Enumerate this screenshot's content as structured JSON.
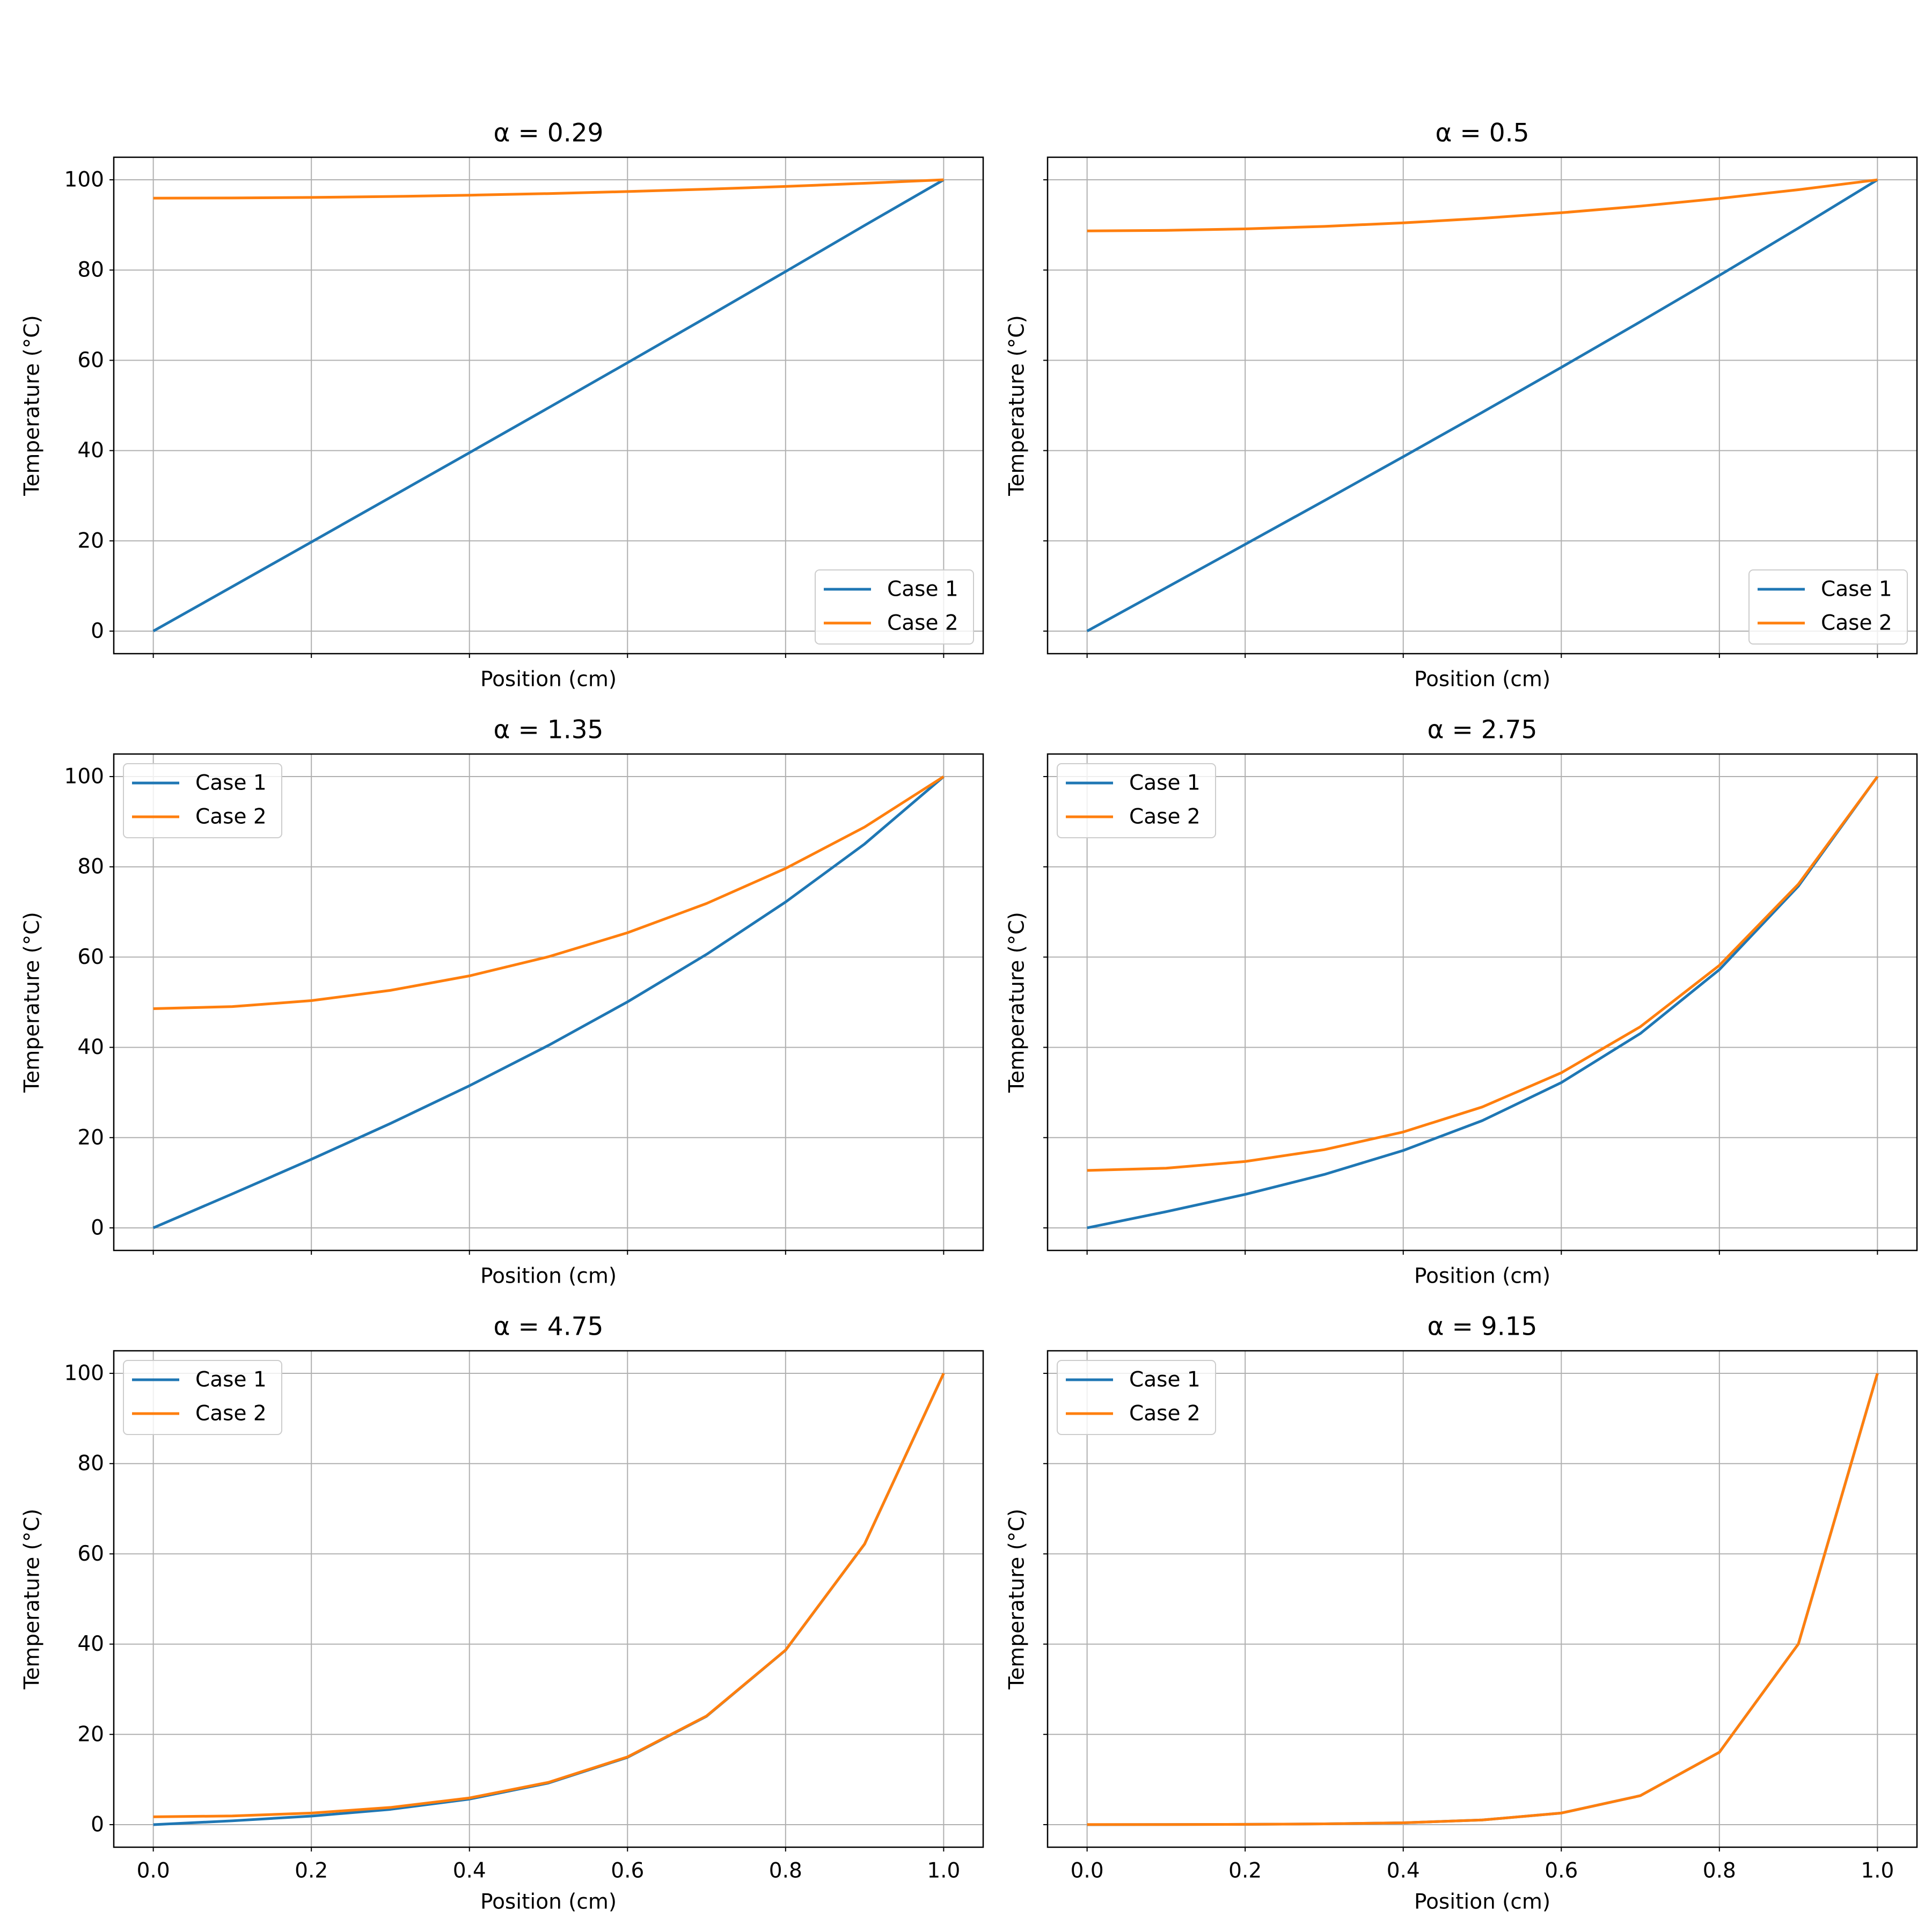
{
  "chart_data": [
    {
      "type": "line",
      "title": "α = 0.29",
      "xlabel": "Position (cm)",
      "ylabel": "Temperature (°C)",
      "x": [
        0,
        0.1,
        0.2,
        0.3,
        0.4,
        0.5,
        0.6,
        0.7,
        0.8,
        0.9,
        1.0
      ],
      "series": [
        {
          "name": "Case 1",
          "color": "#1f77b4",
          "values": [
            0,
            9.86,
            19.73,
            29.63,
            39.53,
            49.48,
            59.47,
            69.53,
            79.67,
            89.9,
            100
          ]
        },
        {
          "name": "Case 2",
          "color": "#ff7f0e",
          "values": [
            95.94,
            95.98,
            96.1,
            96.3,
            96.59,
            96.95,
            97.4,
            97.92,
            98.53,
            99.23,
            100
          ]
        }
      ],
      "xlim": [
        -0.05,
        1.05
      ],
      "ylim": [
        -5,
        105
      ],
      "xticks": [
        0,
        0.2,
        0.4,
        0.6,
        0.8,
        1
      ],
      "xticklabels": false,
      "yticks": [
        0,
        20,
        40,
        60,
        80,
        100
      ],
      "yticklabels": true,
      "grid": true,
      "legend": "lower-right"
    },
    {
      "type": "line",
      "title": "α = 0.5",
      "xlabel": "Position (cm)",
      "ylabel": "Temperature (°C)",
      "x": [
        0,
        0.1,
        0.2,
        0.3,
        0.4,
        0.5,
        0.6,
        0.7,
        0.8,
        0.9,
        1.0
      ],
      "series": [
        {
          "name": "Case 1",
          "color": "#1f77b4",
          "values": [
            0,
            9.6,
            19.22,
            28.89,
            38.64,
            48.48,
            58.44,
            68.55,
            78.82,
            89.3,
            100
          ]
        },
        {
          "name": "Case 2",
          "color": "#ff7f0e",
          "values": [
            88.68,
            88.79,
            89.13,
            89.68,
            90.46,
            91.47,
            92.7,
            94.17,
            95.87,
            97.81,
            100
          ]
        }
      ],
      "xlim": [
        -0.05,
        1.05
      ],
      "ylim": [
        -5,
        105
      ],
      "xticks": [
        0,
        0.2,
        0.4,
        0.6,
        0.8,
        1
      ],
      "xticklabels": false,
      "yticks": [
        0,
        20,
        40,
        60,
        80,
        100
      ],
      "yticklabels": false,
      "grid": true,
      "legend": "lower-right"
    },
    {
      "type": "line",
      "title": "α = 1.35",
      "xlabel": "Position (cm)",
      "ylabel": "Temperature (°C)",
      "x": [
        0,
        0.1,
        0.2,
        0.3,
        0.4,
        0.5,
        0.6,
        0.7,
        0.8,
        0.9,
        1.0
      ],
      "series": [
        {
          "name": "Case 1",
          "color": "#1f77b4",
          "values": [
            0,
            7.53,
            15.19,
            23.13,
            31.5,
            40.44,
            50.08,
            60.61,
            72.21,
            85.07,
            100
          ]
        },
        {
          "name": "Case 2",
          "color": "#ff7f0e",
          "values": [
            48.58,
            49.03,
            50.36,
            52.63,
            55.84,
            60.08,
            65.4,
            71.88,
            79.65,
            88.82,
            100
          ]
        }
      ],
      "xlim": [
        -0.05,
        1.05
      ],
      "ylim": [
        -5,
        105
      ],
      "xticks": [
        0,
        0.2,
        0.4,
        0.6,
        0.8,
        1
      ],
      "xticklabels": false,
      "yticks": [
        0,
        20,
        40,
        60,
        80,
        100
      ],
      "yticklabels": true,
      "grid": true,
      "legend": "upper-left"
    },
    {
      "type": "line",
      "title": "α = 2.75",
      "xlabel": "Position (cm)",
      "ylabel": "Temperature (°C)",
      "x": [
        0,
        0.1,
        0.2,
        0.3,
        0.4,
        0.5,
        0.6,
        0.7,
        0.8,
        0.9,
        1.0
      ],
      "series": [
        {
          "name": "Case 1",
          "color": "#1f77b4",
          "values": [
            0,
            3.58,
            7.42,
            11.83,
            17.15,
            23.76,
            32.19,
            43.07,
            57.22,
            75.73,
            100
          ]
        },
        {
          "name": "Case 2",
          "color": "#ff7f0e",
          "values": [
            12.73,
            13.22,
            14.71,
            17.32,
            21.25,
            26.79,
            34.37,
            44.57,
            58.17,
            76.18,
            100
          ]
        }
      ],
      "xlim": [
        -0.05,
        1.05
      ],
      "ylim": [
        -5,
        105
      ],
      "xticks": [
        0,
        0.2,
        0.4,
        0.6,
        0.8,
        1
      ],
      "xticklabels": false,
      "yticks": [
        0,
        20,
        40,
        60,
        80,
        100
      ],
      "yticklabels": false,
      "grid": true,
      "legend": "upper-left"
    },
    {
      "type": "line",
      "title": "α = 4.75",
      "xlabel": "Position (cm)",
      "ylabel": "Temperature (°C)",
      "x": [
        0,
        0.1,
        0.2,
        0.3,
        0.4,
        0.5,
        0.6,
        0.7,
        0.8,
        0.9,
        1.0
      ],
      "series": [
        {
          "name": "Case 1",
          "color": "#1f77b4",
          "values": [
            0,
            0.85,
            1.9,
            3.39,
            5.66,
            9.22,
            14.91,
            24.02,
            38.66,
            62.18,
            100
          ]
        },
        {
          "name": "Case 2",
          "color": "#ff7f0e",
          "values": [
            1.73,
            1.93,
            2.57,
            3.81,
            5.91,
            9.38,
            15.01,
            24.08,
            38.69,
            62.2,
            100
          ]
        }
      ],
      "xlim": [
        -0.05,
        1.05
      ],
      "ylim": [
        -5,
        105
      ],
      "xticks": [
        {
          "value": 0,
          "label": "0.0"
        },
        0.2,
        0.4,
        0.6,
        0.8,
        {
          "value": 1,
          "label": "1.0"
        }
      ],
      "xticklabels": true,
      "yticks": [
        0,
        20,
        40,
        60,
        80,
        100
      ],
      "yticklabels": true,
      "grid": true,
      "legend": "upper-left"
    },
    {
      "type": "line",
      "title": "α = 9.15",
      "xlabel": "Position (cm)",
      "ylabel": "Temperature (°C)",
      "x": [
        0,
        0.1,
        0.2,
        0.3,
        0.4,
        0.5,
        0.6,
        0.7,
        0.8,
        0.9,
        1.0
      ],
      "series": [
        {
          "name": "Case 1",
          "color": "#1f77b4",
          "values": [
            0,
            0.02,
            0.07,
            0.17,
            0.41,
            1.03,
            2.57,
            6.42,
            16.04,
            40.05,
            100
          ]
        },
        {
          "name": "Case 2",
          "color": "#ff7f0e",
          "values": [
            0.02,
            0.03,
            0.07,
            0.17,
            0.41,
            1.03,
            2.57,
            6.42,
            16.04,
            40.05,
            100
          ]
        }
      ],
      "xlim": [
        -0.05,
        1.05
      ],
      "ylim": [
        -5,
        105
      ],
      "xticks": [
        {
          "value": 0,
          "label": "0.0"
        },
        0.2,
        0.4,
        0.6,
        0.8,
        {
          "value": 1,
          "label": "1.0"
        }
      ],
      "xticklabels": true,
      "yticks": [
        0,
        20,
        40,
        60,
        80,
        100
      ],
      "yticklabels": false,
      "grid": true,
      "legend": "upper-left"
    }
  ]
}
